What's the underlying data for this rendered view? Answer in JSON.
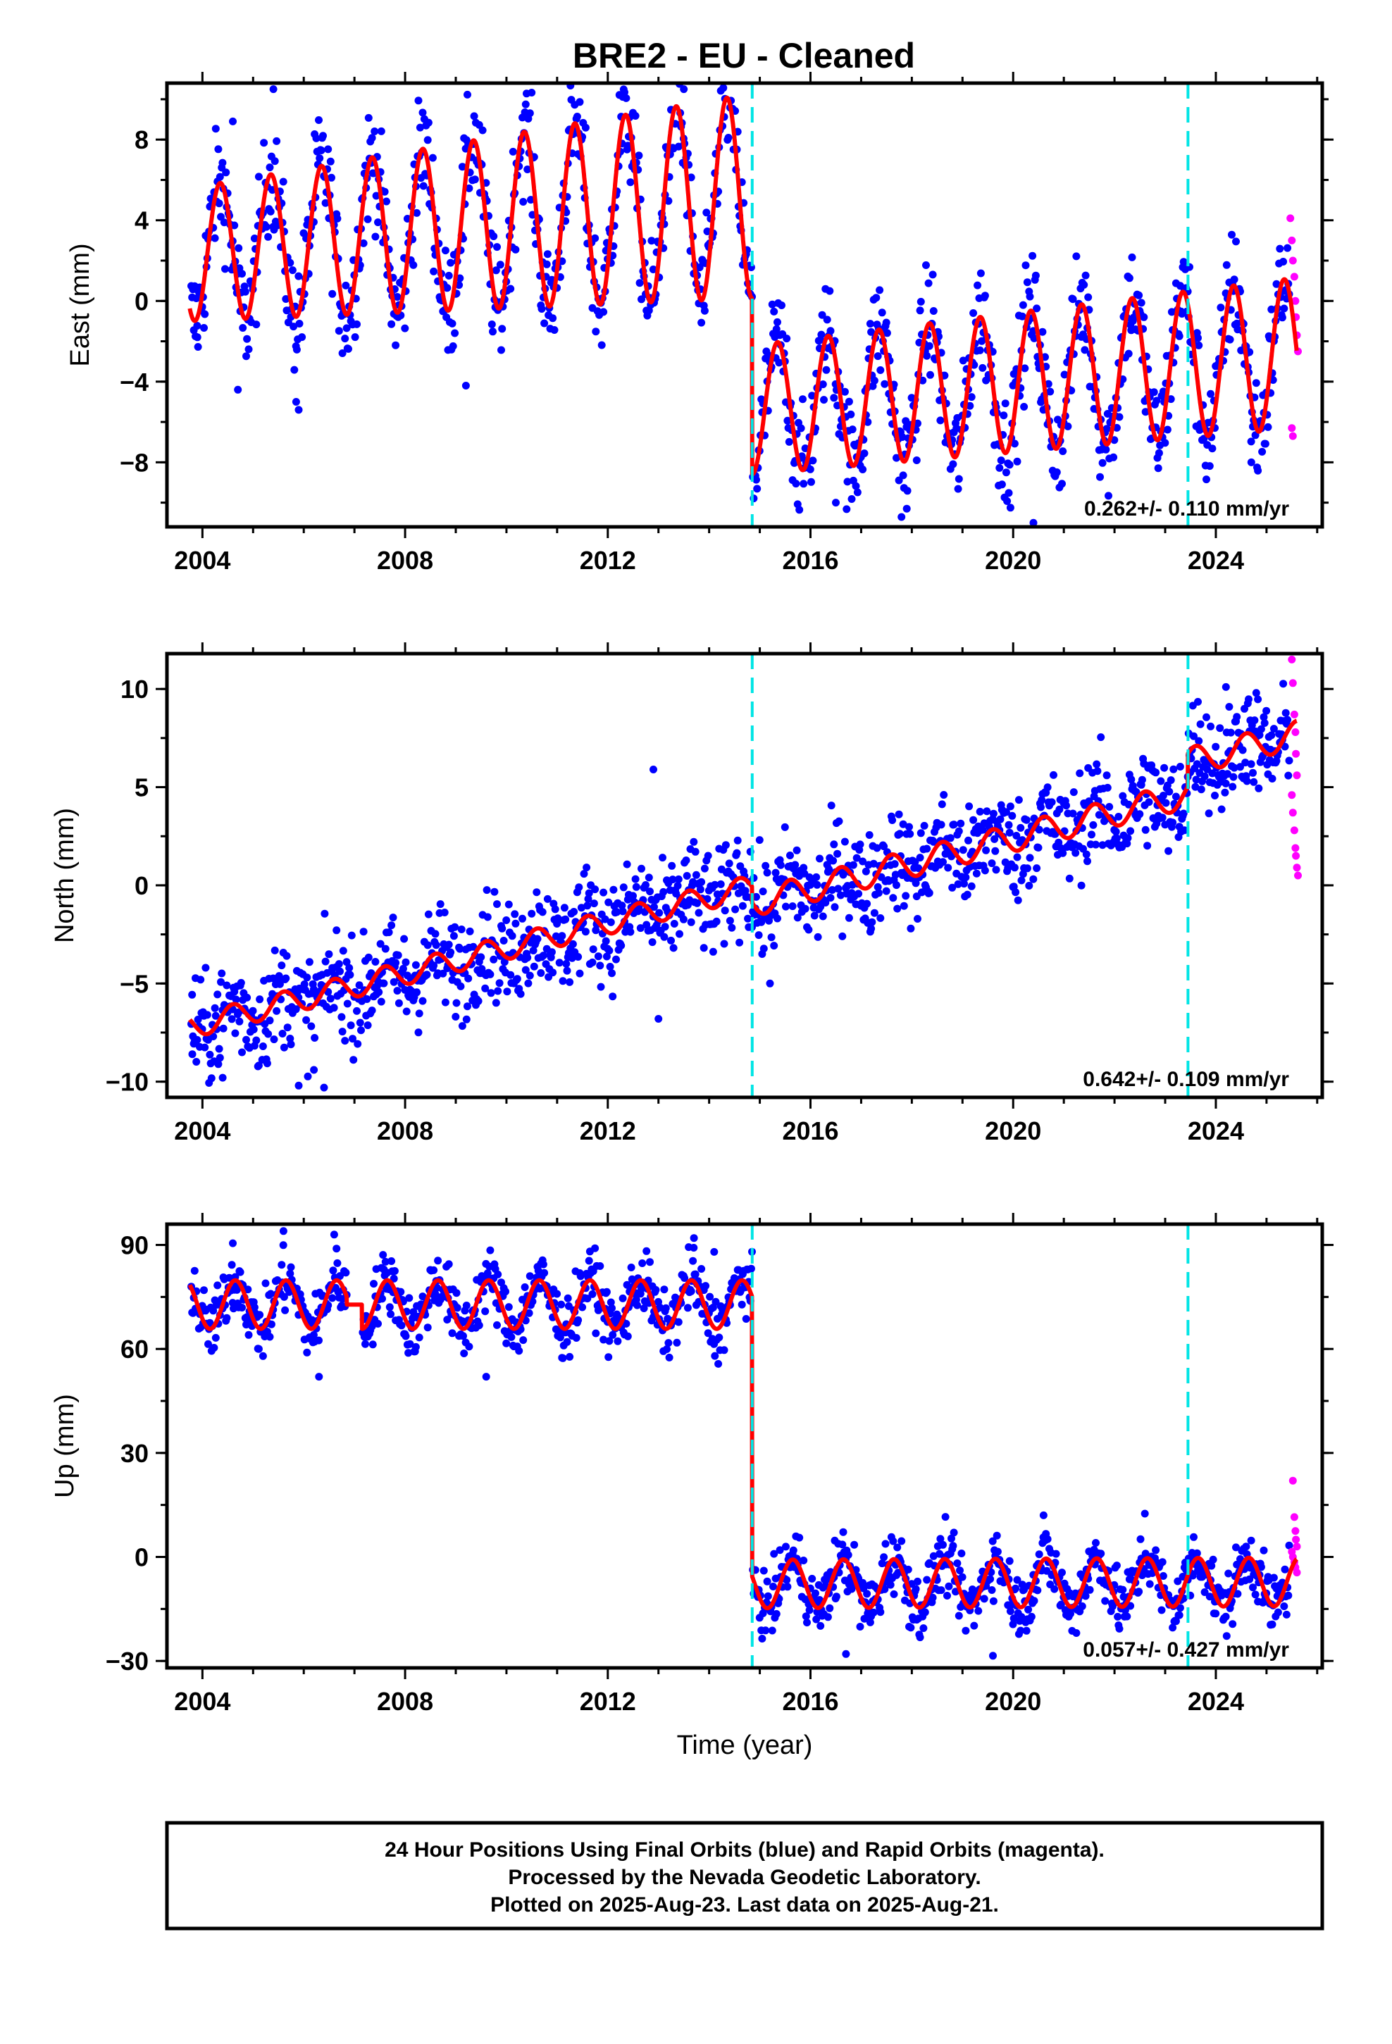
{
  "title": "BRE2  - EU - Cleaned",
  "footer": {
    "line1": "24 Hour Positions Using Final Orbits (blue) and Rapid Orbits (magenta).",
    "line2": "Processed by the Nevada Geodetic Laboratory.",
    "line3": "Plotted on 2025-Aug-23. Last data on 2025-Aug-21."
  },
  "colors": {
    "final_orbits": "#0000ff",
    "rapid_orbits": "#ff00ff",
    "model_fit": "#ff0000",
    "equipment_change": "#00e5e5"
  },
  "chart_data": [
    {
      "type": "scatter",
      "ylabel": "East (mm)",
      "xlabel": "",
      "xlim": [
        2003.3,
        2026.1
      ],
      "ylim": [
        -11.2,
        10.8
      ],
      "xticks": [
        2004,
        2008,
        2012,
        2016,
        2020,
        2024
      ],
      "yticks": [
        -8,
        -4,
        0,
        4,
        8
      ],
      "ytick_labels": [
        "−8",
        "−4",
        "0",
        "4",
        "8"
      ],
      "grid": false,
      "rate_text": "0.262+/- 0.110 mm/yr",
      "breaks": [
        2014.85,
        2023.45
      ],
      "model": {
        "segments": [
          {
            "start": 2003.75,
            "end": 2014.85,
            "offset": 2.3,
            "slope": 0.262,
            "amp": 3.3,
            "amp_growth": 0.16,
            "phase": 0.1
          },
          {
            "start": 2014.85,
            "end": 2025.6,
            "offset": -5.4,
            "slope": 0.262,
            "amp": 3.2,
            "amp_growth": 0.05,
            "phase": 0.1
          }
        ]
      },
      "noise": 1.4,
      "data_gaps": [],
      "outliers": [
        [
          2003.9,
          -1.8
        ],
        [
          2004.6,
          8.9
        ],
        [
          2004.7,
          -4.4
        ],
        [
          2005.4,
          10.5
        ],
        [
          2005.9,
          -5.4
        ],
        [
          2005.85,
          -5.0
        ],
        [
          2009.2,
          -4.2
        ],
        [
          2013.5,
          10.5
        ],
        [
          2016.5,
          -10.0
        ],
        [
          2017.9,
          -10.3
        ],
        [
          2020.4,
          -11.0
        ],
        [
          2024.7,
          -8.0
        ]
      ],
      "rapid_points": [
        [
          2025.47,
          4.1
        ],
        [
          2025.5,
          3.0
        ],
        [
          2025.52,
          2.0
        ],
        [
          2025.55,
          1.2
        ],
        [
          2025.57,
          0.0
        ],
        [
          2025.58,
          -0.8
        ],
        [
          2025.6,
          -1.7
        ],
        [
          2025.62,
          -2.5
        ],
        [
          2025.5,
          -6.3
        ],
        [
          2025.52,
          -6.7
        ]
      ]
    },
    {
      "type": "scatter",
      "ylabel": "North (mm)",
      "xlabel": "",
      "xlim": [
        2003.3,
        2026.1
      ],
      "ylim": [
        -10.8,
        11.8
      ],
      "xticks": [
        2004,
        2008,
        2012,
        2016,
        2020,
        2024
      ],
      "yticks": [
        -10,
        -5,
        0,
        5,
        10
      ],
      "ytick_labels": [
        "−10",
        "−5",
        "0",
        "5",
        "10"
      ],
      "grid": false,
      "rate_text": "0.642+/- 0.109 mm/yr",
      "breaks": [
        2014.85,
        2023.45
      ],
      "model": {
        "segments": [
          {
            "start": 2003.75,
            "end": 2014.85,
            "offset": -7.2,
            "slope": 0.642,
            "amp": 0.6,
            "amp_growth": 0.0,
            "phase": 0.35
          },
          {
            "start": 2014.85,
            "end": 2023.45,
            "offset": -0.9,
            "slope": 0.642,
            "amp": 0.7,
            "amp_growth": 0.0,
            "phase": 0.35
          },
          {
            "start": 2023.45,
            "end": 2025.6,
            "offset": 6.3,
            "slope": 0.642,
            "amp": 0.7,
            "amp_growth": 0.0,
            "phase": 0.35
          }
        ]
      },
      "noise": 1.3,
      "data_gaps": [],
      "outliers": [
        [
          2003.8,
          -8.6
        ],
        [
          2004.4,
          -9.8
        ],
        [
          2005.9,
          -10.2
        ],
        [
          2006.4,
          -10.3
        ],
        [
          2006.2,
          -9.4
        ],
        [
          2012.9,
          5.9
        ],
        [
          2013.0,
          -6.8
        ],
        [
          2015.2,
          -5.0
        ],
        [
          2024.2,
          10.1
        ]
      ],
      "rapid_points": [
        [
          2025.5,
          11.5
        ],
        [
          2025.52,
          10.3
        ],
        [
          2025.55,
          8.7
        ],
        [
          2025.57,
          7.8
        ],
        [
          2025.58,
          6.7
        ],
        [
          2025.6,
          5.6
        ],
        [
          2025.5,
          4.6
        ],
        [
          2025.52,
          3.7
        ],
        [
          2025.55,
          2.8
        ],
        [
          2025.57,
          1.9
        ],
        [
          2025.58,
          1.5
        ],
        [
          2025.6,
          0.9
        ],
        [
          2025.62,
          0.5
        ]
      ]
    },
    {
      "type": "scatter",
      "ylabel": "Up (mm)",
      "xlabel": "Time (year)",
      "xlim": [
        2003.3,
        2026.1
      ],
      "ylim": [
        -32,
        96
      ],
      "xticks": [
        2004,
        2008,
        2012,
        2016,
        2020,
        2024
      ],
      "yticks": [
        -30,
        0,
        30,
        60,
        90
      ],
      "ytick_labels": [
        "−30",
        "0",
        "30",
        "60",
        "90"
      ],
      "grid": false,
      "rate_text": "0.057+/- 0.427 mm/yr",
      "breaks": [
        2014.85,
        2023.45
      ],
      "model": {
        "segments": [
          {
            "start": 2003.75,
            "end": 2006.85,
            "offset": 72.8,
            "slope": 0.0,
            "amp": 7.0,
            "amp_growth": 0.0,
            "phase": 0.4
          },
          {
            "start": 2006.85,
            "end": 2007.15,
            "offset": 72.8,
            "slope": 0.0,
            "amp": 0.0,
            "amp_growth": 0.0,
            "phase": 0.4,
            "gap": true
          },
          {
            "start": 2007.15,
            "end": 2014.85,
            "offset": 72.8,
            "slope": 0.0,
            "amp": 7.0,
            "amp_growth": 0.0,
            "phase": 0.4
          },
          {
            "start": 2014.85,
            "end": 2025.6,
            "offset": -7.8,
            "slope": 0.057,
            "amp": 7.0,
            "amp_growth": 0.0,
            "phase": 0.4
          }
        ]
      },
      "noise": 4.5,
      "data_gaps": [
        [
          2006.85,
          2007.15
        ]
      ],
      "outliers": [
        [
          2004.6,
          90.5
        ],
        [
          2005.6,
          94.0
        ],
        [
          2006.6,
          93.0
        ],
        [
          2006.3,
          52.0
        ],
        [
          2009.6,
          52.0
        ],
        [
          2013.7,
          92.0
        ],
        [
          2014.1,
          88.0
        ],
        [
          2022.6,
          12.5
        ],
        [
          2020.6,
          12.0
        ],
        [
          2016.7,
          -28.0
        ],
        [
          2019.6,
          -28.5
        ]
      ],
      "rapid_points": [
        [
          2025.52,
          22.0
        ],
        [
          2025.55,
          11.5
        ],
        [
          2025.57,
          7.5
        ],
        [
          2025.58,
          5.0
        ],
        [
          2025.6,
          3.0
        ],
        [
          2025.5,
          1.5
        ],
        [
          2025.52,
          0.0
        ],
        [
          2025.55,
          -1.5
        ],
        [
          2025.57,
          -3.0
        ],
        [
          2025.6,
          -4.5
        ]
      ]
    }
  ]
}
